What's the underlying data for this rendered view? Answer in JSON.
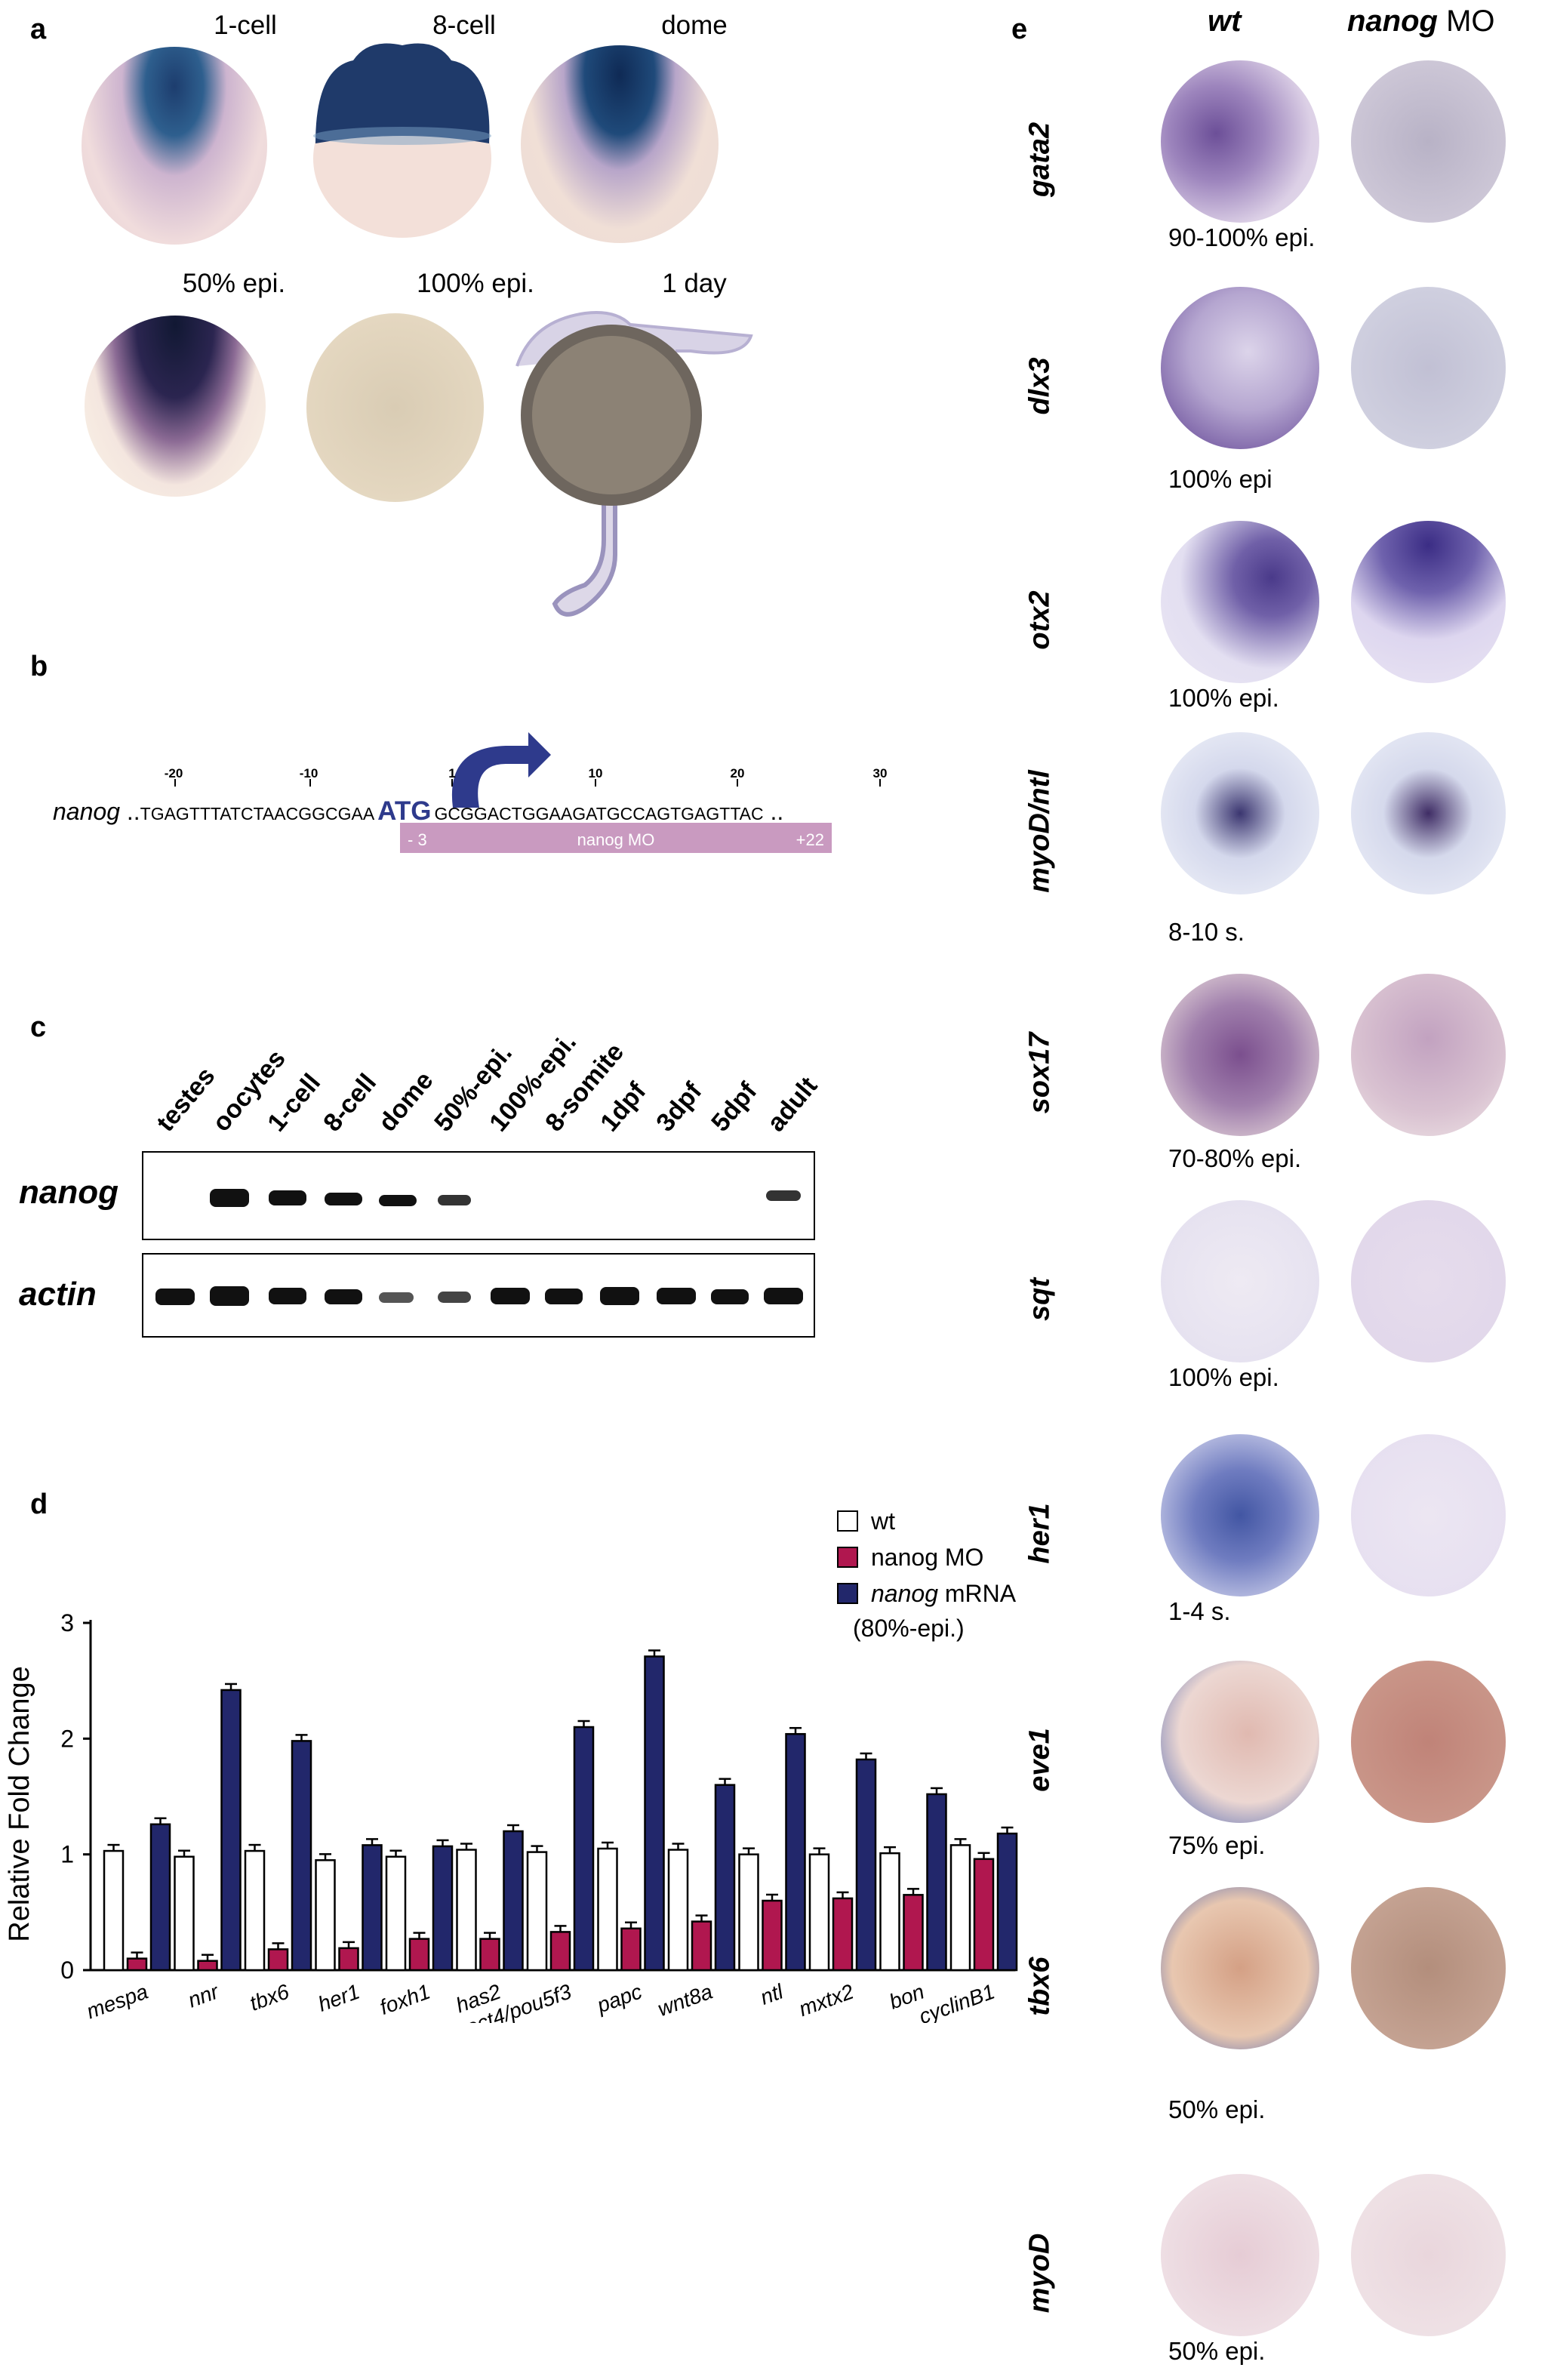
{
  "panel_a": {
    "letter": "a",
    "stages_row1": [
      "1-cell",
      "8-cell",
      "dome"
    ],
    "stages_row2": [
      "50% epi.",
      "100% epi.",
      "1 day"
    ]
  },
  "panel_b": {
    "letter": "b",
    "gene": "nanog",
    "leading_dots": "..",
    "trailing_dots": "..",
    "seq_before": "TGAGTTTATCTAACGGCGAA",
    "start_codon": "ATG",
    "seq_after": "GCGGACTGGAAGATGCCAGTGAGTTAC",
    "positions": [
      "-20",
      "-10",
      "1",
      "10",
      "20",
      "30"
    ],
    "mo_label": "nanog MO",
    "mo_start": "- 3",
    "mo_end": "+22",
    "colors": {
      "arrow": "#2e3a8c",
      "mo_bar": "#c99ac0"
    }
  },
  "panel_c": {
    "letter": "c",
    "lanes": [
      "testes",
      "oocytes",
      "1-cell",
      "8-cell",
      "dome",
      "50%-epi.",
      "100%-epi.",
      "8-somite",
      "1dpf",
      "3dpf",
      "5dpf",
      "adult"
    ],
    "rows": [
      "nanog",
      "actin"
    ]
  },
  "panel_d": {
    "letter": "d"
  },
  "chart_data": {
    "type": "bar",
    "ylabel": "Relative Fold Change",
    "ylim": [
      0,
      3
    ],
    "yticks": [
      "0",
      "1",
      "2",
      "3"
    ],
    "categories": [
      "mespa",
      "nnr",
      "tbx6",
      "her1",
      "foxh1",
      "has2",
      "oct4/pou5f3",
      "papc",
      "wnt8a",
      "ntl",
      "mxtx2",
      "bon",
      "cyclinB1"
    ],
    "series": [
      {
        "name": "wt",
        "color": "#ffffff",
        "values": [
          1.03,
          0.98,
          1.03,
          0.95,
          0.98,
          1.04,
          1.02,
          1.05,
          1.04,
          1.0,
          1.0,
          1.01,
          1.08
        ]
      },
      {
        "name": "nanog MO",
        "color": "#b0174f",
        "values": [
          0.1,
          0.08,
          0.18,
          0.19,
          0.27,
          0.27,
          0.33,
          0.36,
          0.42,
          0.6,
          0.62,
          0.65,
          0.96
        ]
      },
      {
        "name": "nanog mRNA",
        "color": "#22276b",
        "values": [
          1.26,
          2.42,
          1.98,
          1.08,
          1.07,
          1.2,
          2.1,
          2.71,
          1.6,
          2.04,
          1.82,
          1.52,
          1.18
        ]
      }
    ],
    "legend_note": "(80%-epi.)",
    "legend_position": "top-right"
  },
  "panel_e": {
    "letter": "e",
    "col_headers": [
      "wt",
      "nanog",
      "MO"
    ],
    "rows": [
      {
        "gene": "gata2",
        "stage": "90-100% epi."
      },
      {
        "gene": "dlx3",
        "stage": "100% epi"
      },
      {
        "gene": "otx2",
        "stage": "100% epi."
      },
      {
        "gene": "myoD/ntl",
        "stage": "8-10 s."
      },
      {
        "gene": "sox17",
        "stage": "70-80% epi."
      },
      {
        "gene": "sqt",
        "stage": "100% epi."
      },
      {
        "gene": "her1",
        "stage": "1-4 s."
      },
      {
        "gene": "eve1",
        "stage": "75% epi."
      },
      {
        "gene": "tbx6",
        "stage": "50% epi."
      },
      {
        "gene": "myoD",
        "stage": "50% epi."
      }
    ]
  }
}
